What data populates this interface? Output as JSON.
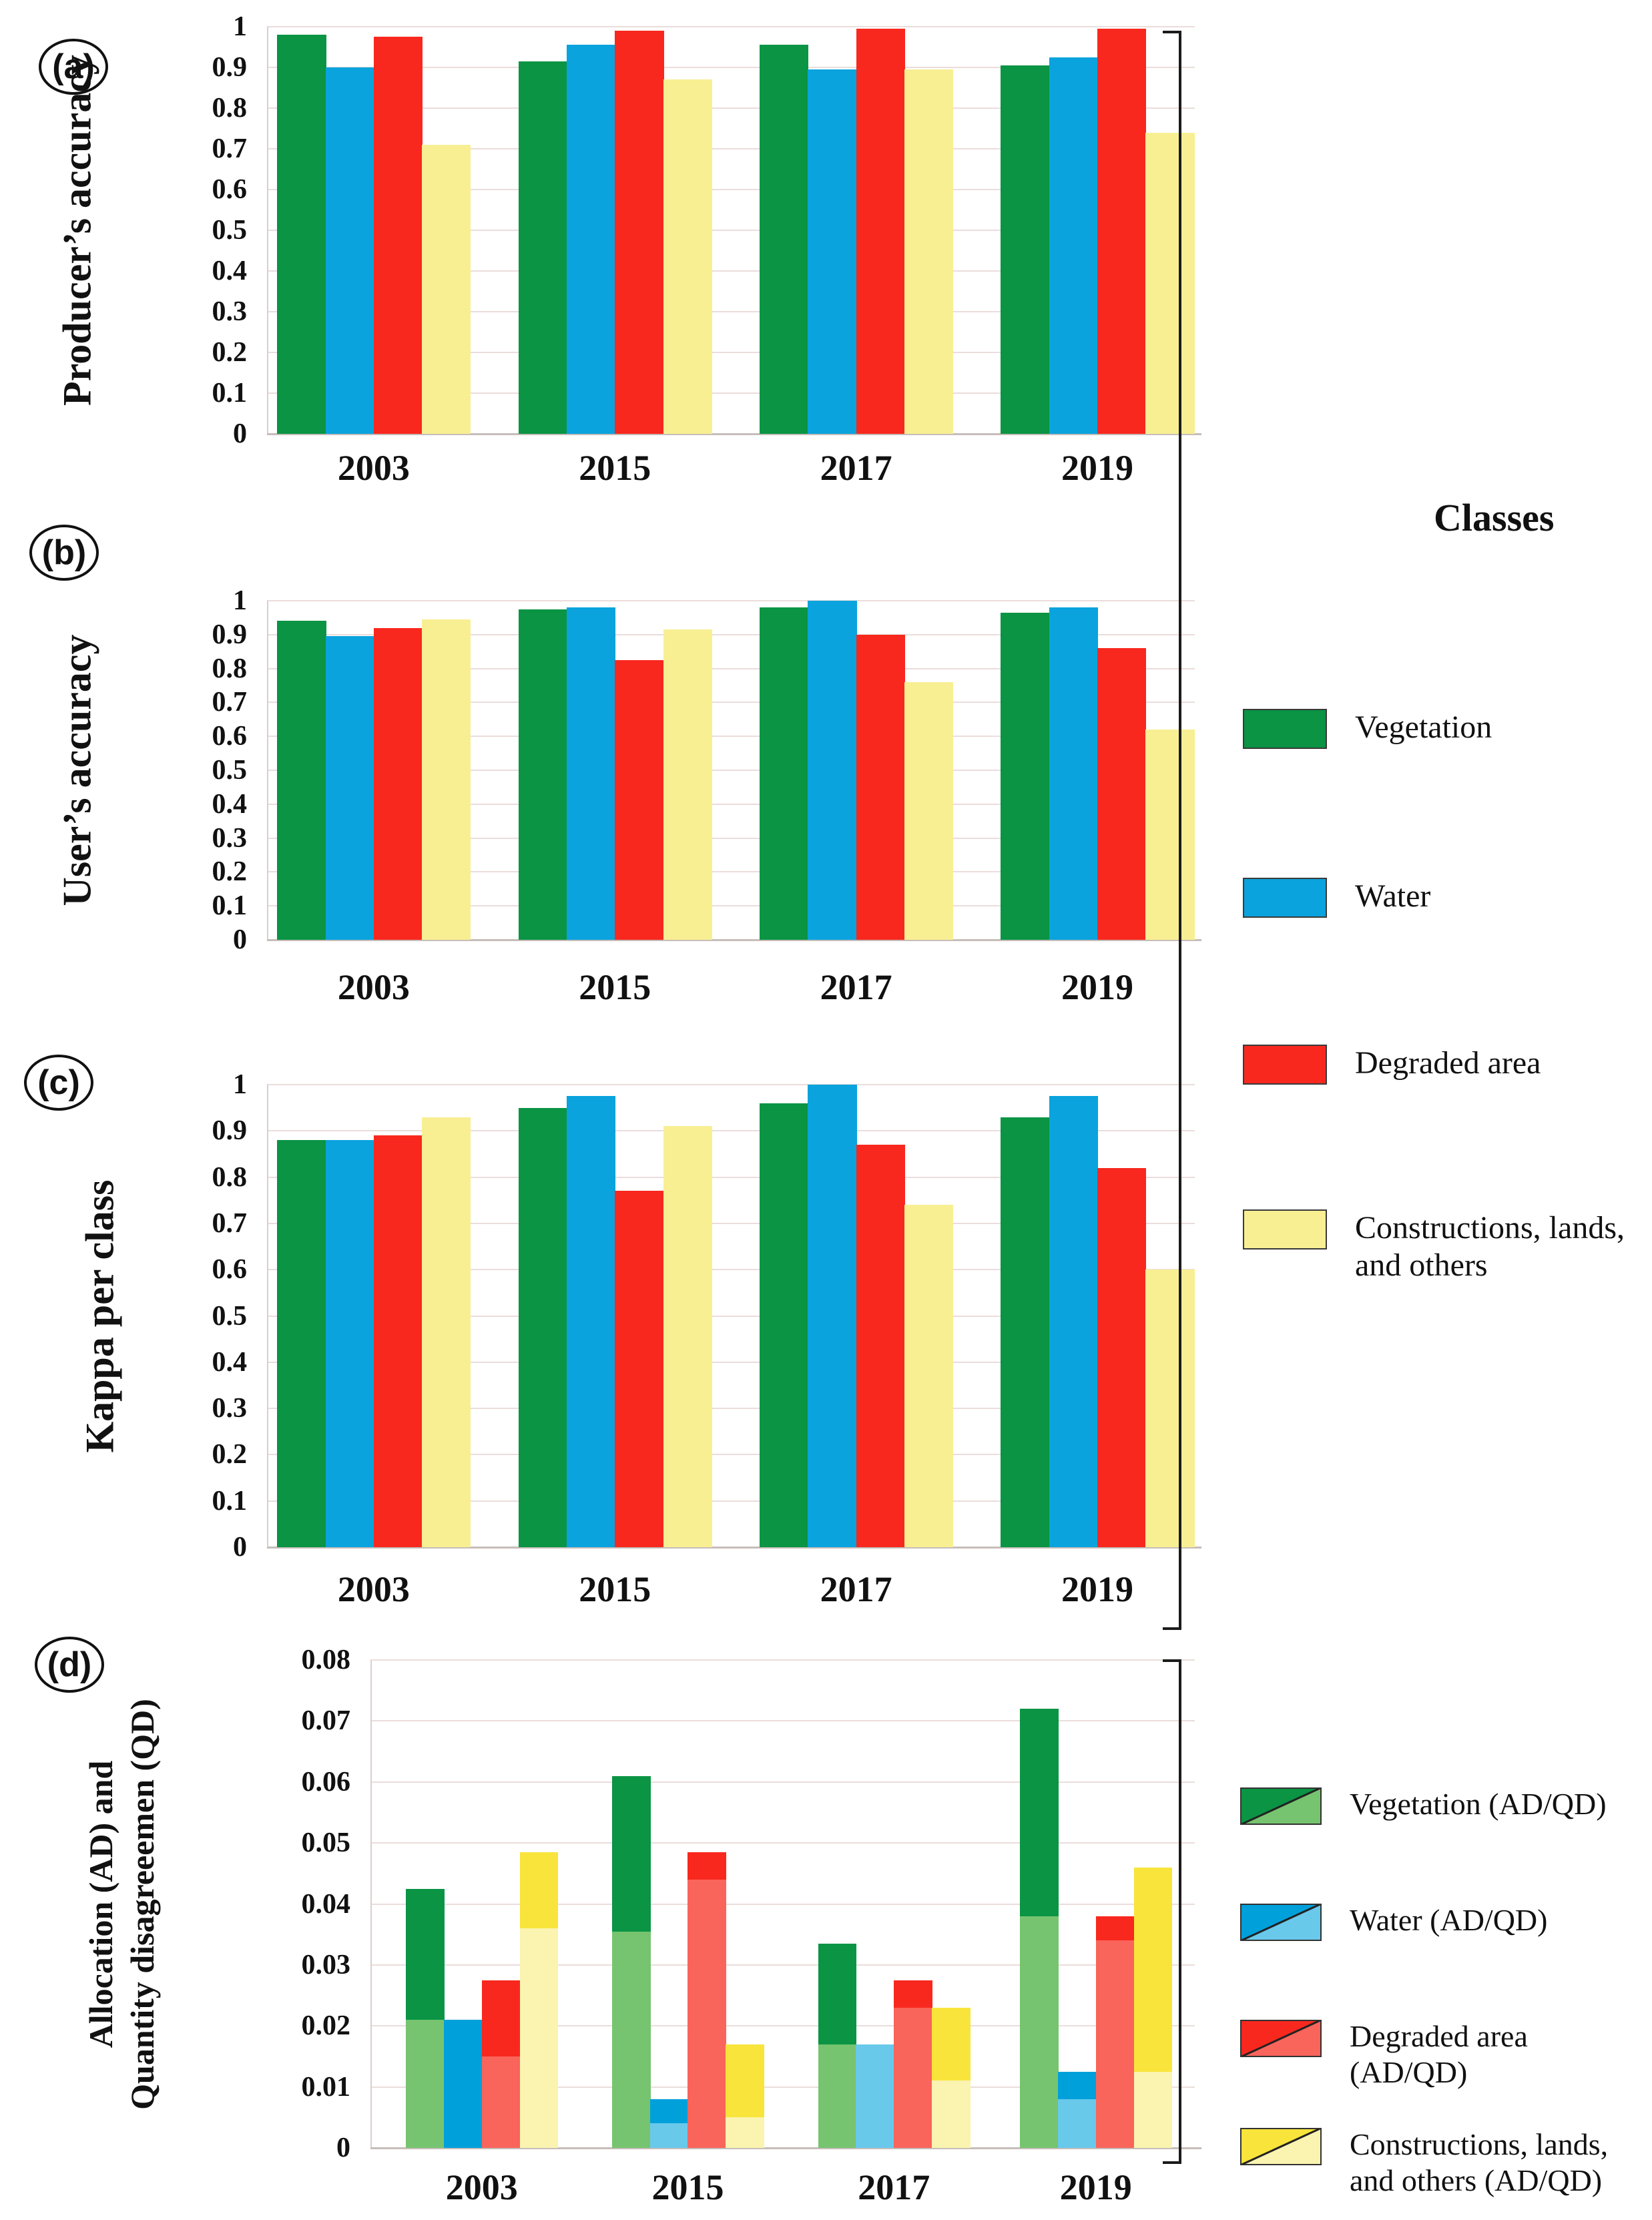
{
  "figure_colors": {
    "vegetation_dark": "#0A9444",
    "vegetation_light": "#76C46F",
    "water_dark": "#0AA3DD",
    "water_light": "#68C9EB",
    "degraded_dark": "#F8281E",
    "degraded_light": "#F9645B",
    "constructions_bright": "#F9E43B",
    "constructions_pale": "#F8EF93",
    "constructions_pale_light": "#FAF4B0",
    "gridline": "#EADDDB"
  },
  "chart_data": [
    {
      "id": "a",
      "panel_label": "(a)",
      "type": "bar",
      "ylabel": "Producer’s accuracy",
      "ylim": [
        0,
        1
      ],
      "grid": true,
      "legend_position": "right",
      "y_ticks": [
        "1",
        "0.9",
        "0.8",
        "0.7",
        "0.6",
        "0.5",
        "0.4",
        "0.3",
        "0.2",
        "0.1",
        "0"
      ],
      "categories": [
        "2003",
        "2015",
        "2017",
        "2019"
      ],
      "series": [
        {
          "name": "Vegetation",
          "color": "#0A9444",
          "values": [
            0.98,
            0.915,
            0.955,
            0.905
          ]
        },
        {
          "name": "Water",
          "color": "#0AA3DD",
          "values": [
            0.9,
            0.955,
            0.895,
            0.925
          ]
        },
        {
          "name": "Degraded area",
          "color": "#F8281E",
          "values": [
            0.975,
            0.99,
            0.995,
            0.995
          ]
        },
        {
          "name": "Constructions, lands, and others",
          "color": "#F8EF93",
          "values": [
            0.71,
            0.87,
            0.895,
            0.74
          ]
        }
      ]
    },
    {
      "id": "b",
      "panel_label": "(b)",
      "type": "bar",
      "ylabel": "User’s accuracy",
      "ylim": [
        0,
        1
      ],
      "grid": true,
      "legend_position": "right",
      "y_ticks": [
        "1",
        "0.9",
        "0.8",
        "0.7",
        "0.6",
        "0.5",
        "0.4",
        "0.3",
        "0.2",
        "0.1",
        "0"
      ],
      "categories": [
        "2003",
        "2015",
        "2017",
        "2019"
      ],
      "series": [
        {
          "name": "Vegetation",
          "color": "#0A9444",
          "values": [
            0.94,
            0.975,
            0.98,
            0.965
          ]
        },
        {
          "name": "Water",
          "color": "#0AA3DD",
          "values": [
            0.895,
            0.98,
            1.0,
            0.98
          ]
        },
        {
          "name": "Degraded area",
          "color": "#F8281E",
          "values": [
            0.92,
            0.825,
            0.9,
            0.86
          ]
        },
        {
          "name": "Constructions, lands, and others",
          "color": "#F8EF93",
          "values": [
            0.945,
            0.915,
            0.76,
            0.62
          ]
        }
      ]
    },
    {
      "id": "c",
      "panel_label": "(c)",
      "type": "bar",
      "ylabel": "Kappa per class",
      "ylim": [
        0,
        1
      ],
      "grid": true,
      "legend_position": "right",
      "y_ticks": [
        "1",
        "0.9",
        "0.8",
        "0.7",
        "0.6",
        "0.5",
        "0.4",
        "0.3",
        "0.2",
        "0.1",
        "0"
      ],
      "categories": [
        "2003",
        "2015",
        "2017",
        "2019"
      ],
      "series": [
        {
          "name": "Vegetation",
          "color": "#0A9444",
          "values": [
            0.88,
            0.95,
            0.96,
            0.93
          ]
        },
        {
          "name": "Water",
          "color": "#0AA3DD",
          "values": [
            0.88,
            0.975,
            1.0,
            0.975
          ]
        },
        {
          "name": "Degraded area",
          "color": "#F8281E",
          "values": [
            0.89,
            0.77,
            0.87,
            0.82
          ]
        },
        {
          "name": "Constructions, lands, and others",
          "color": "#F8EF93",
          "values": [
            0.93,
            0.91,
            0.74,
            0.6
          ]
        }
      ]
    },
    {
      "id": "d",
      "panel_label": "(d)",
      "type": "stacked-bar",
      "ylabel_lines": [
        "Allocation (AD) and",
        "Quantity disagreeemen (QD)"
      ],
      "ylim": [
        0,
        0.08
      ],
      "grid": true,
      "legend_position": "right",
      "y_ticks": [
        "0.08",
        "0.07",
        "0.06",
        "0.05",
        "0.04",
        "0.03",
        "0.02",
        "0.01",
        "0"
      ],
      "categories": [
        "2003",
        "2015",
        "2017",
        "2019"
      ],
      "series": [
        {
          "name": "Vegetation (AD/QD)",
          "color_bottom": "#76C46F",
          "color_top": "#0A9444",
          "values_bottom_segment_top": [
            0.021,
            0.0355,
            0.017,
            0.038
          ],
          "values_total": [
            0.0425,
            0.061,
            0.0335,
            0.072
          ]
        },
        {
          "name": "Water (AD/QD)",
          "color_bottom": "#68C9EB",
          "color_top": "#00A0DB",
          "values_bottom_segment_top": [
            0.0,
            0.004,
            0.017,
            0.008
          ],
          "values_total": [
            0.021,
            0.008,
            0.017,
            0.0125
          ]
        },
        {
          "name": "Degraded area (AD/QD)",
          "color_bottom": "#F9645B",
          "color_top": "#F8281E",
          "values_bottom_segment_top": [
            0.015,
            0.044,
            0.023,
            0.034
          ],
          "values_total": [
            0.0275,
            0.0485,
            0.0275,
            0.038
          ]
        },
        {
          "name": "Constructions, lands, and others (AD/QD)",
          "color_bottom": "#FAF4B0",
          "color_top": "#F9E43B",
          "values_bottom_segment_top": [
            0.036,
            0.005,
            0.011,
            0.0125
          ],
          "values_total": [
            0.0485,
            0.017,
            0.023,
            0.046
          ]
        }
      ]
    }
  ],
  "legends": {
    "classes": {
      "title": "Classes",
      "items": [
        {
          "label": "Vegetation",
          "color": "#0A9444"
        },
        {
          "label": "Water",
          "color": "#0AA3DD"
        },
        {
          "label": "Degraded area",
          "color": "#F8281E"
        },
        {
          "label": "Constructions, lands, and others",
          "color": "#F8EF93"
        }
      ]
    },
    "adqd": {
      "items": [
        {
          "label": "Vegetation (AD/QD)",
          "color_top": "#0A9444",
          "color_bottom": "#76C46F"
        },
        {
          "label": "Water (AD/QD)",
          "color_top": "#00A0DB",
          "color_bottom": "#68C9EB"
        },
        {
          "label": "Degraded area (AD/QD)",
          "color_top": "#F8281E",
          "color_bottom": "#F9645B"
        },
        {
          "label": "Constructions, lands, and others (AD/QD)",
          "color_top": "#F9E43B",
          "color_bottom": "#FAF4B0"
        }
      ]
    }
  }
}
